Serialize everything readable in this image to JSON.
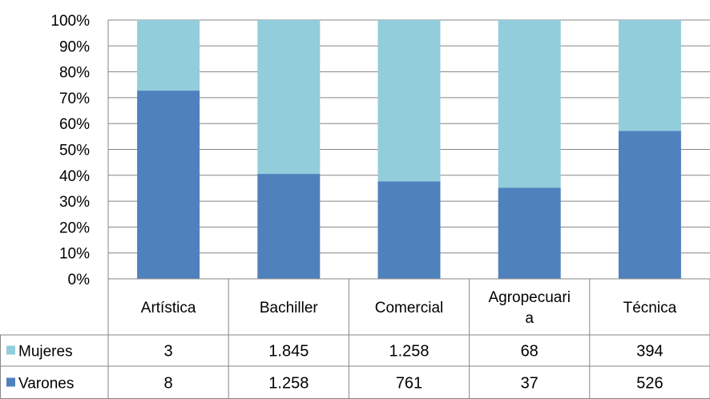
{
  "chart_data": {
    "type": "bar",
    "stacked": "percent",
    "categories": [
      "Artística",
      "Bachiller",
      "Comercial",
      "Agropecuari\na",
      "Técnica"
    ],
    "series": [
      {
        "name": "Mujeres",
        "values": [
          3,
          1845,
          1258,
          68,
          394
        ],
        "labels": [
          "3",
          "1.845",
          "1.258",
          "68",
          "394"
        ],
        "color": "#92cddc"
      },
      {
        "name": "Varones",
        "values": [
          8,
          1258,
          761,
          37,
          526
        ],
        "labels": [
          "8",
          "1.258",
          "761",
          "37",
          "526"
        ],
        "color": "#4f81bd"
      }
    ],
    "y_ticks": [
      "0%",
      "10%",
      "20%",
      "30%",
      "40%",
      "50%",
      "60%",
      "70%",
      "80%",
      "90%",
      "100%"
    ],
    "ylim": [
      0,
      100
    ],
    "grid": true,
    "data_table": true,
    "legend": "data-table-left"
  }
}
